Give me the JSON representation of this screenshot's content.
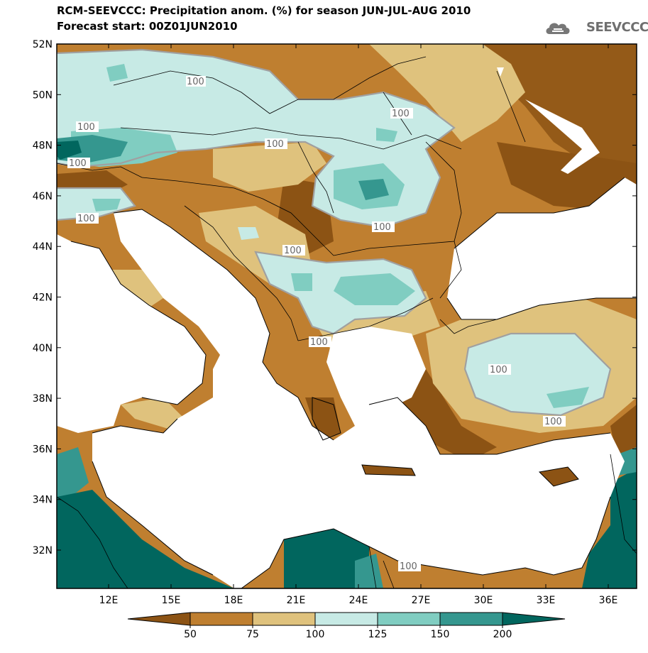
{
  "title_line1": "RCM-SEEVCCC: Precipitation anom. (%) for season JUN-JUL-AUG 2010",
  "title_line2": "Forecast start: 00Z01JUN2010",
  "logo_text": "SEEVCCC",
  "lat_labels": [
    "52N",
    "50N",
    "48N",
    "46N",
    "44N",
    "42N",
    "40N",
    "38N",
    "36N",
    "34N",
    "32N"
  ],
  "lon_labels": [
    "12E",
    "15E",
    "18E",
    "21E",
    "24E",
    "27E",
    "30E",
    "33E",
    "36E"
  ],
  "contour_labels": [
    "100",
    "100",
    "100",
    "100",
    "100",
    "100",
    "100",
    "100",
    "100",
    "100",
    "100",
    "100"
  ],
  "colorbar": {
    "labels": [
      "50",
      "75",
      "100",
      "125",
      "150",
      "200"
    ],
    "colors": [
      "#8c5314",
      "#bf7f30",
      "#dfc27d",
      "#c7eae5",
      "#80cdc1",
      "#35978f",
      "#01665e"
    ]
  },
  "colors": {
    "sea": "#ffffff",
    "borders": "#000000",
    "contour_line": "#a0a0a0"
  }
}
